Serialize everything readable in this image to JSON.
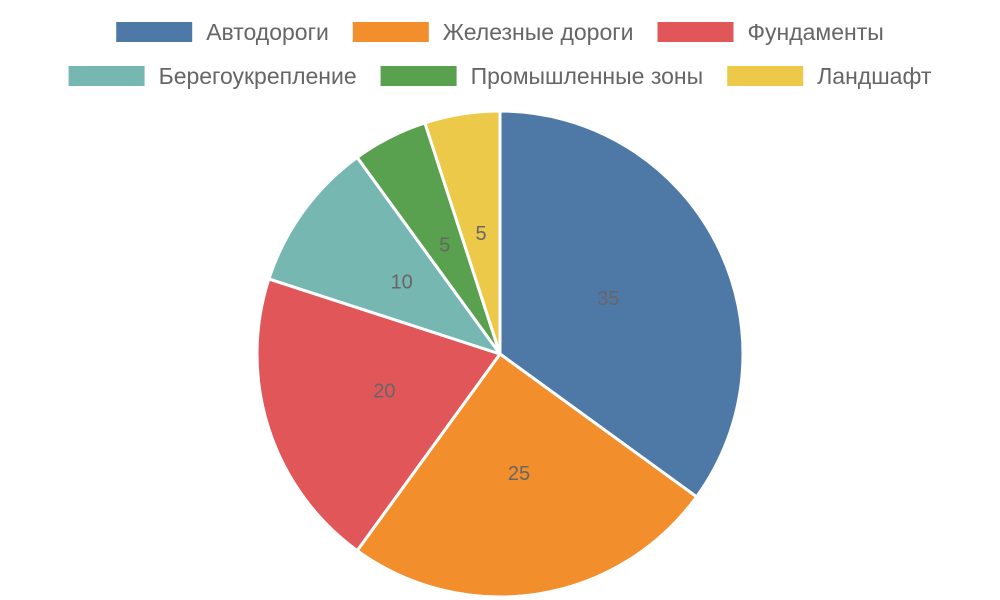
{
  "chart_data": {
    "type": "pie",
    "categories": [
      "Автодороги",
      "Железные дороги",
      "Фундаменты",
      "Берегоукрепление",
      "Промышленные зоны",
      "Ландшафт"
    ],
    "values": [
      35,
      25,
      20,
      10,
      5,
      5
    ],
    "colors": [
      "#4e79a7",
      "#f28e2c",
      "#e15759",
      "#76b7b2",
      "#59a14f",
      "#edc949"
    ],
    "data_labels": [
      "35",
      "25",
      "20",
      "10",
      "5",
      "5"
    ],
    "legend_position": "top",
    "slice_border_color": "#ffffff",
    "label_color": "#666666"
  }
}
